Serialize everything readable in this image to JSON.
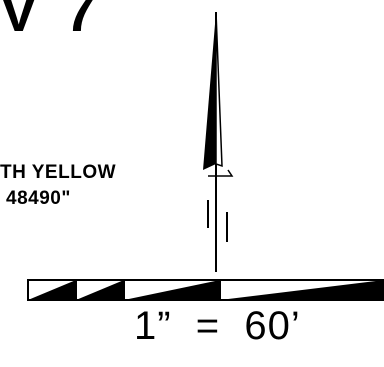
{
  "header": {
    "title_fragment": "V 7"
  },
  "notes": {
    "line1": "TH YELLOW",
    "line2": "48490\""
  },
  "scale": {
    "label": "1”  =  60’"
  },
  "icons": {
    "north_arrow": "north-arrow-icon",
    "scale_bar": "graphic-scale-bar"
  },
  "colors": {
    "ink": "#000000",
    "paper": "#ffffff"
  }
}
